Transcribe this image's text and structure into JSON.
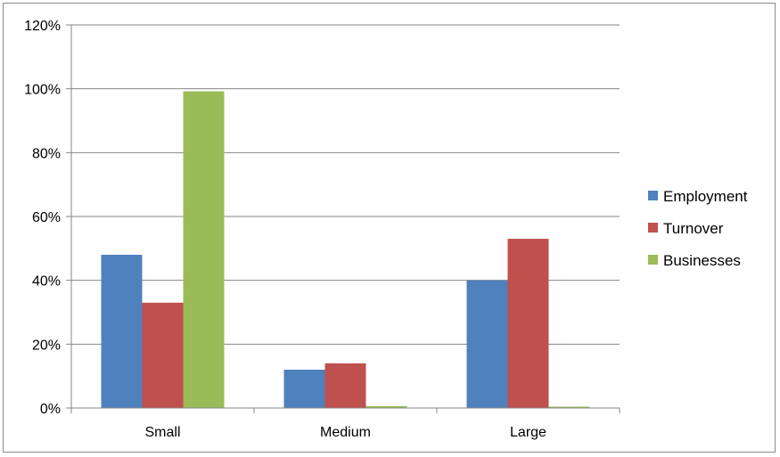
{
  "chart_data": {
    "type": "bar",
    "categories": [
      "Small",
      "Medium",
      "Large"
    ],
    "series": [
      {
        "name": "Employment",
        "color": "#4f81bd",
        "values": [
          48,
          12,
          40
        ]
      },
      {
        "name": "Turnover",
        "color": "#c0504d",
        "values": [
          33,
          14,
          53
        ]
      },
      {
        "name": "Businesses",
        "color": "#9bbb59",
        "values": [
          99.2,
          0.6,
          0.2
        ]
      }
    ],
    "value_unit": "%",
    "ylim": [
      0,
      120
    ],
    "yticks": [
      0,
      20,
      40,
      60,
      80,
      100,
      120
    ],
    "ytick_labels": [
      "0%",
      "20%",
      "40%",
      "60%",
      "80%",
      "100%",
      "120%"
    ],
    "title": "",
    "xlabel": "",
    "ylabel": "",
    "grid": "horizontal",
    "legend_position": "right"
  }
}
